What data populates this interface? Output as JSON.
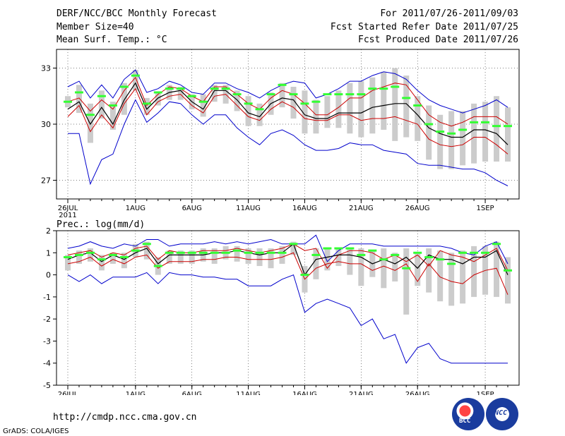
{
  "header": {
    "title": "DERF/NCC/BCC Monthly Forecast",
    "member_size": "Member Size=40",
    "variable": "Mean Surf. Temp.: °C",
    "period": "For 2011/07/26-2011/09/03",
    "started": "Fcst Started Refer Date 2011/07/25",
    "produced": "Fcst Produced Date 2011/07/26"
  },
  "footer": {
    "url": "http://cmdp.ncc.cma.gov.cn",
    "grads": "GrADS: COLA/IGES",
    "logo1": "BCC",
    "logo2": "NCC"
  },
  "colors": {
    "max": "#0000cc",
    "min": "#0000cc",
    "upper": "#cc0000",
    "lower": "#cc0000",
    "mean": "#000000",
    "median": "#33ff33",
    "box": "#cccccc"
  },
  "chart_data": [
    {
      "type": "line",
      "title": "Mean Surf. Temp.: °C",
      "ylim": [
        26,
        34
      ],
      "yticks": [
        27,
        30,
        33
      ],
      "x_count": 40,
      "xticks": [
        {
          "i": 0,
          "label": "26JUL",
          "sub": "2011"
        },
        {
          "i": 6,
          "label": "1AUG"
        },
        {
          "i": 11,
          "label": "6AUG"
        },
        {
          "i": 16,
          "label": "11AUG"
        },
        {
          "i": 21,
          "label": "16AUG"
        },
        {
          "i": 26,
          "label": "21AUG"
        },
        {
          "i": 31,
          "label": "26AUG"
        },
        {
          "i": 37,
          "label": "1SEP"
        }
      ],
      "series": [
        {
          "name": "max",
          "values": [
            32.0,
            32.3,
            31.4,
            32.1,
            31.4,
            32.4,
            32.9,
            31.7,
            31.9,
            32.3,
            32.1,
            31.7,
            31.6,
            32.2,
            32.2,
            31.9,
            31.7,
            31.4,
            31.8,
            32.1,
            32.3,
            32.2,
            31.4,
            31.6,
            31.9,
            32.3,
            32.3,
            32.6,
            32.8,
            32.7,
            32.4,
            31.8,
            31.3,
            31.0,
            30.8,
            30.6,
            30.8,
            31.0,
            31.3,
            30.9
          ]
        },
        {
          "name": "upper",
          "values": [
            31.2,
            31.4,
            30.7,
            31.3,
            30.8,
            31.8,
            32.5,
            31.0,
            31.6,
            32.0,
            31.9,
            31.5,
            31.2,
            32.0,
            32.0,
            31.6,
            31.1,
            30.8,
            31.4,
            31.8,
            31.6,
            31.1,
            30.5,
            30.5,
            30.9,
            31.4,
            31.4,
            31.8,
            32.0,
            32.2,
            32.1,
            31.3,
            30.5,
            30.1,
            29.9,
            30.1,
            30.4,
            30.4,
            30.4,
            30.0
          ]
        },
        {
          "name": "mean",
          "values": [
            30.8,
            31.2,
            30.0,
            30.9,
            30.0,
            31.3,
            32.2,
            30.8,
            31.4,
            31.7,
            31.8,
            31.2,
            30.8,
            31.8,
            31.8,
            31.3,
            30.6,
            30.4,
            31.1,
            31.4,
            31.3,
            30.5,
            30.3,
            30.3,
            30.6,
            30.6,
            30.6,
            30.9,
            31.0,
            31.1,
            31.1,
            30.5,
            29.8,
            29.5,
            29.3,
            29.3,
            29.7,
            29.7,
            29.5,
            28.9
          ]
        },
        {
          "name": "lower",
          "values": [
            30.4,
            31.0,
            29.6,
            30.5,
            29.8,
            31.1,
            31.9,
            30.5,
            31.2,
            31.5,
            31.6,
            31.0,
            30.6,
            31.5,
            31.6,
            31.0,
            30.4,
            30.2,
            30.8,
            31.2,
            30.9,
            30.3,
            30.2,
            30.2,
            30.5,
            30.5,
            30.2,
            30.3,
            30.3,
            30.4,
            30.2,
            30.0,
            29.2,
            28.9,
            28.8,
            28.9,
            29.3,
            29.3,
            28.9,
            28.4
          ]
        },
        {
          "name": "min",
          "values": [
            29.5,
            29.5,
            26.8,
            28.1,
            28.4,
            30.0,
            31.3,
            30.1,
            30.6,
            31.2,
            31.1,
            30.5,
            30.0,
            30.5,
            30.5,
            29.8,
            29.3,
            28.9,
            29.5,
            29.7,
            29.4,
            28.9,
            28.6,
            28.6,
            28.7,
            29.0,
            28.9,
            28.9,
            28.6,
            28.5,
            28.4,
            27.9,
            27.8,
            27.8,
            27.7,
            27.6,
            27.6,
            27.4,
            27.0,
            26.7
          ]
        },
        {
          "name": "median",
          "values": [
            31.2,
            31.7,
            30.5,
            31.5,
            31.0,
            32.0,
            32.6,
            31.1,
            31.7,
            31.9,
            31.9,
            31.5,
            31.2,
            31.9,
            31.9,
            31.6,
            31.1,
            30.8,
            31.6,
            32.1,
            31.6,
            31.1,
            31.2,
            31.6,
            31.6,
            31.6,
            31.6,
            31.9,
            31.9,
            32.0,
            31.4,
            31.0,
            30.0,
            29.6,
            29.5,
            29.7,
            30.1,
            30.1,
            29.9,
            29.9
          ]
        },
        {
          "name": "box_top",
          "values": [
            31.5,
            32.1,
            31.1,
            31.8,
            31.2,
            32.2,
            32.9,
            31.4,
            31.7,
            32.1,
            32.0,
            31.6,
            31.6,
            32.1,
            32.1,
            31.8,
            31.5,
            31.1,
            31.7,
            32.2,
            32.0,
            31.8,
            31.3,
            31.5,
            31.8,
            32.2,
            32.3,
            32.5,
            32.8,
            33.0,
            32.6,
            31.5,
            31.0,
            30.5,
            30.7,
            30.7,
            31.1,
            31.2,
            31.5,
            30.9
          ]
        },
        {
          "name": "box_bottom",
          "values": [
            30.9,
            30.6,
            29.0,
            30.3,
            29.7,
            30.5,
            31.8,
            30.5,
            31.0,
            31.3,
            31.3,
            30.8,
            30.4,
            31.2,
            31.1,
            30.7,
            29.9,
            29.9,
            30.5,
            30.9,
            30.3,
            29.5,
            29.5,
            29.8,
            29.8,
            29.5,
            29.3,
            29.5,
            29.7,
            29.1,
            29.3,
            29.1,
            28.1,
            27.6,
            27.6,
            27.8,
            27.9,
            28.0,
            28.0,
            28.0
          ]
        }
      ]
    },
    {
      "type": "line",
      "title": "Prec.: log(mm/d)",
      "ylim": [
        -5,
        2
      ],
      "yticks": [
        -5,
        -4,
        -3,
        -2,
        -1,
        0,
        1,
        2
      ],
      "x_count": 40,
      "xticks": [
        {
          "i": 0,
          "label": "26JUL",
          "sub": "2011"
        },
        {
          "i": 6,
          "label": "1AUG"
        },
        {
          "i": 11,
          "label": "6AUG"
        },
        {
          "i": 16,
          "label": "11AUG"
        },
        {
          "i": 21,
          "label": "16AUG"
        },
        {
          "i": 26,
          "label": "21AUG"
        },
        {
          "i": 31,
          "label": "26AUG"
        },
        {
          "i": 37,
          "label": "1SEP"
        }
      ],
      "series": [
        {
          "name": "max",
          "values": [
            1.2,
            1.3,
            1.5,
            1.3,
            1.2,
            1.4,
            1.3,
            1.6,
            1.6,
            1.3,
            1.4,
            1.4,
            1.4,
            1.5,
            1.4,
            1.5,
            1.4,
            1.5,
            1.6,
            1.4,
            1.4,
            1.4,
            1.8,
            0.6,
            1.1,
            1.4,
            1.4,
            1.4,
            1.3,
            1.3,
            1.3,
            1.3,
            1.3,
            1.3,
            1.2,
            1.0,
            0.9,
            1.3,
            1.5,
            0.5
          ]
        },
        {
          "name": "upper",
          "values": [
            0.9,
            1.0,
            1.1,
            0.8,
            1.0,
            0.9,
            1.2,
            1.3,
            0.7,
            1.1,
            1.0,
            1.0,
            1.1,
            1.1,
            1.1,
            1.2,
            1.1,
            1.0,
            1.1,
            1.2,
            1.4,
            1.1,
            1.2,
            0.3,
            0.9,
            1.1,
            1.1,
            1.0,
            0.7,
            0.9,
            0.6,
            0.9,
            0.4,
            1.1,
            0.9,
            0.8,
            0.6,
            0.9,
            1.2,
            0.2
          ]
        },
        {
          "name": "mean",
          "values": [
            0.7,
            0.9,
            1.0,
            0.6,
            0.9,
            0.7,
            1.0,
            1.2,
            0.5,
            0.9,
            0.9,
            0.9,
            0.9,
            1.0,
            1.0,
            1.1,
            1.0,
            0.9,
            1.0,
            1.0,
            1.4,
            0.0,
            0.7,
            0.8,
            0.9,
            0.9,
            0.8,
            0.5,
            0.7,
            0.5,
            0.8,
            0.3,
            0.9,
            0.7,
            0.7,
            0.5,
            0.8,
            0.8,
            1.1,
            0.0
          ]
        },
        {
          "name": "lower",
          "values": [
            0.5,
            0.6,
            0.8,
            0.4,
            0.7,
            0.5,
            0.8,
            0.9,
            0.3,
            0.6,
            0.6,
            0.6,
            0.7,
            0.7,
            0.8,
            0.8,
            0.7,
            0.7,
            0.7,
            0.8,
            1.0,
            -0.2,
            0.3,
            0.5,
            0.6,
            0.5,
            0.5,
            0.2,
            0.4,
            0.2,
            0.5,
            -0.3,
            0.5,
            -0.1,
            -0.3,
            -0.4,
            0.0,
            0.2,
            0.3,
            -0.9
          ]
        },
        {
          "name": "min",
          "values": [
            0.0,
            -0.3,
            0.0,
            -0.4,
            -0.1,
            -0.1,
            -0.1,
            0.1,
            -0.4,
            0.1,
            0.0,
            0.0,
            -0.1,
            -0.1,
            -0.2,
            -0.2,
            -0.5,
            -0.5,
            -0.5,
            -0.2,
            0.0,
            -1.7,
            -1.3,
            -1.1,
            -1.3,
            -1.5,
            -2.3,
            -2.0,
            -2.9,
            -2.7,
            -4.0,
            -3.3,
            -3.1,
            -3.8,
            -4.0,
            -4.0,
            -4.0,
            -4.0,
            -4.0,
            -4.0
          ]
        },
        {
          "name": "median",
          "values": [
            0.8,
            0.9,
            1.0,
            0.7,
            0.9,
            0.8,
            1.1,
            1.4,
            0.4,
            1.0,
            1.0,
            1.0,
            1.0,
            1.0,
            1.0,
            1.1,
            1.0,
            1.0,
            1.0,
            1.0,
            1.4,
            0.0,
            0.9,
            1.2,
            1.2,
            1.2,
            0.9,
            1.1,
            0.7,
            0.9,
            0.3,
            1.0,
            0.8,
            0.7,
            0.5,
            1.0,
            1.0,
            1.0,
            1.4,
            0.2
          ]
        },
        {
          "name": "box_top",
          "values": [
            0.9,
            1.1,
            1.2,
            0.9,
            1.0,
            1.0,
            1.4,
            1.5,
            0.8,
            1.1,
            1.1,
            1.1,
            1.2,
            1.2,
            1.3,
            1.3,
            1.2,
            1.2,
            1.2,
            1.3,
            1.5,
            0.4,
            1.2,
            1.2,
            1.2,
            1.2,
            1.2,
            1.1,
            1.2,
            1.0,
            1.2,
            1.0,
            1.2,
            1.1,
            1.0,
            1.1,
            1.3,
            1.3,
            1.5,
            0.8
          ]
        },
        {
          "name": "box_bottom",
          "values": [
            0.2,
            0.5,
            0.6,
            0.2,
            0.5,
            0.3,
            0.8,
            0.7,
            0.0,
            0.5,
            0.5,
            0.5,
            0.6,
            0.5,
            0.7,
            0.6,
            0.5,
            0.4,
            0.3,
            0.5,
            0.9,
            -0.8,
            -0.2,
            0.2,
            0.4,
            0.0,
            -0.5,
            -0.1,
            -0.6,
            -0.3,
            -1.8,
            -0.5,
            -0.8,
            -1.2,
            -1.4,
            -1.3,
            -1.0,
            -0.9,
            -1.0,
            -1.3
          ]
        }
      ]
    }
  ]
}
